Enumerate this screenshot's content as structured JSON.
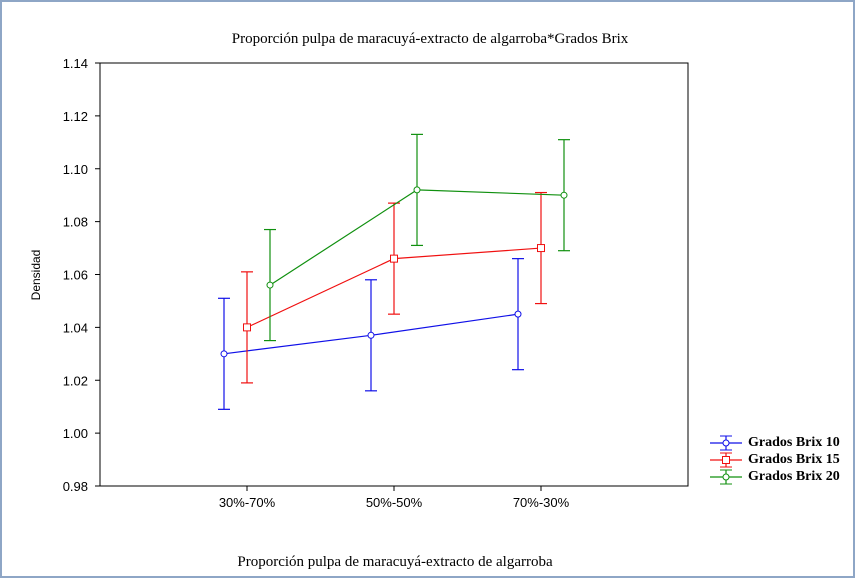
{
  "chart_data": {
    "type": "line",
    "title": "Proporción pulpa de maracuyá-extracto de algarroba*Grados Brix",
    "x_label": "Proporción pulpa de maracuyá-extracto de algarroba",
    "y_label": "Densidad",
    "categories": [
      "30%-70%",
      "50%-50%",
      "70%-30%"
    ],
    "ylim": [
      0.98,
      1.14
    ],
    "yticks": [
      0.98,
      {
        "value": 1,
        "label": "1.00"
      },
      1.02,
      1.04,
      1.06,
      1.08,
      {
        "value": 1.1,
        "label": "1.10"
      },
      1.12,
      1.14
    ],
    "legend": "bottom-right",
    "series": [
      {
        "name": "Grados Brix 10",
        "color": "#1010e8",
        "values": [
          1.03,
          1.037,
          1.045
        ],
        "errors": [
          0.021,
          0.021,
          0.021
        ]
      },
      {
        "name": "Grados Brix 15",
        "color": "#f01010",
        "values": [
          1.04,
          1.066,
          1.07
        ],
        "errors": [
          0.021,
          0.021,
          0.021
        ]
      },
      {
        "name": "Grados Brix 20",
        "color": "#10900f",
        "values": [
          1.056,
          1.092,
          1.09
        ],
        "errors": [
          0.021,
          0.021,
          0.021
        ]
      }
    ]
  }
}
